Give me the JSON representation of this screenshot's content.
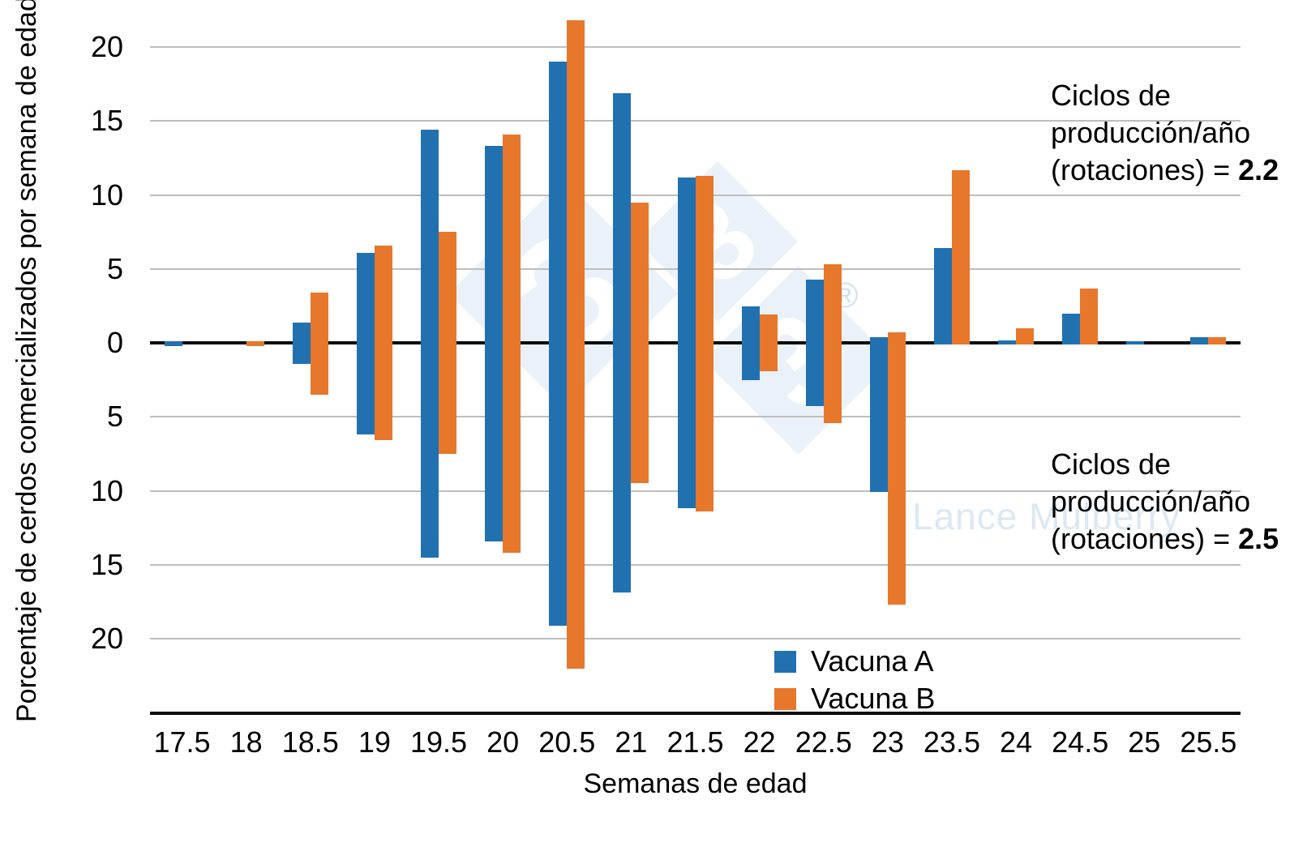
{
  "watermark": {
    "logo_char": "3",
    "registered_mark": "®",
    "credit": "Lance Mulberry",
    "diamond_color": "#EAF1F9",
    "credit_color": "#DCE8F4"
  },
  "chart_data": {
    "type": "bar",
    "subtype": "mirrored-vertical (valores hacia arriba = 2.2 rotaciones, hacia abajo = 2.5 rotaciones, ambos en valor absoluto)",
    "title": "",
    "xlabel": "Semanas de edad",
    "ylabel": "Porcentaje de cerdos comercializados por semana de edad (%)",
    "grid": true,
    "ylim_abs": [
      0,
      22
    ],
    "categories": [
      "17.5",
      "18",
      "18.5",
      "19",
      "19.5",
      "20",
      "20.5",
      "21",
      "21.5",
      "22",
      "22.5",
      "23",
      "23.5",
      "24",
      "24.5",
      "25",
      "25.5"
    ],
    "x_axis": {
      "title": "Semanas de edad"
    },
    "y_axis": {
      "title": "Porcentaje de cerdos comercializados por semana de edad (%)",
      "ticks": [
        {
          "label": "20",
          "v": 20
        },
        {
          "label": "15",
          "v": 15
        },
        {
          "label": "10",
          "v": 10
        },
        {
          "label": "5",
          "v": 5
        },
        {
          "label": "0",
          "v": 0
        },
        {
          "label": "5",
          "v": -5
        },
        {
          "label": "10",
          "v": -10
        },
        {
          "label": "15",
          "v": -15
        },
        {
          "label": "20",
          "v": -20
        }
      ]
    },
    "groups": [
      {
        "id": "rot22",
        "label": "Ciclos de producción/año (rotaciones) = 2.2",
        "direction": "up",
        "series": [
          {
            "id": "vacuna-a",
            "name": "Vacuna A",
            "color": "#2171B1",
            "values": [
              0.2,
              0,
              1.5,
              6.2,
              14.5,
              13.4,
              19.1,
              17.0,
              11.3,
              2.6,
              4.4,
              0.5,
              6.5,
              0.3,
              2.1,
              0.2,
              0.5
            ]
          },
          {
            "id": "vacuna-b",
            "name": "Vacuna B",
            "color": "#E6772B",
            "values": [
              0,
              0.2,
              3.5,
              6.7,
              7.6,
              14.2,
              21.9,
              9.6,
              11.4,
              2.0,
              5.4,
              0.8,
              11.8,
              1.1,
              3.8,
              0,
              0.5
            ]
          }
        ]
      },
      {
        "id": "rot25",
        "label": "Ciclos de producción/año (rotaciones) = 2.5",
        "direction": "down",
        "series": [
          {
            "id": "vacuna-a",
            "name": "Vacuna A",
            "color": "#2171B1",
            "values": [
              0.2,
              0,
              1.4,
              6.2,
              14.5,
              13.4,
              19.1,
              16.9,
              11.2,
              2.5,
              4.3,
              10.1,
              0,
              0,
              0,
              0,
              0
            ]
          },
          {
            "id": "vacuna-b",
            "name": "Vacuna B",
            "color": "#E6772B",
            "values": [
              0,
              0.2,
              3.5,
              6.6,
              7.5,
              14.2,
              22.0,
              9.5,
              11.4,
              1.9,
              5.4,
              17.7,
              0,
              0,
              0,
              0,
              0
            ]
          }
        ]
      }
    ],
    "legend": [
      {
        "label": "Vacuna A",
        "color": "#2171B1"
      },
      {
        "label": "Vacuna B",
        "color": "#E6772B"
      }
    ],
    "legend_position": "inside-bottom-center",
    "annotations": {
      "top": {
        "line1": "Ciclos de",
        "line2": "producción/año",
        "line3_prefix": "(rotaciones) = ",
        "value": "2.2"
      },
      "bottom": {
        "line1": "Ciclos de",
        "line2": "producción/año",
        "line3_prefix": "(rotaciones) = ",
        "value": "2.5"
      }
    }
  }
}
